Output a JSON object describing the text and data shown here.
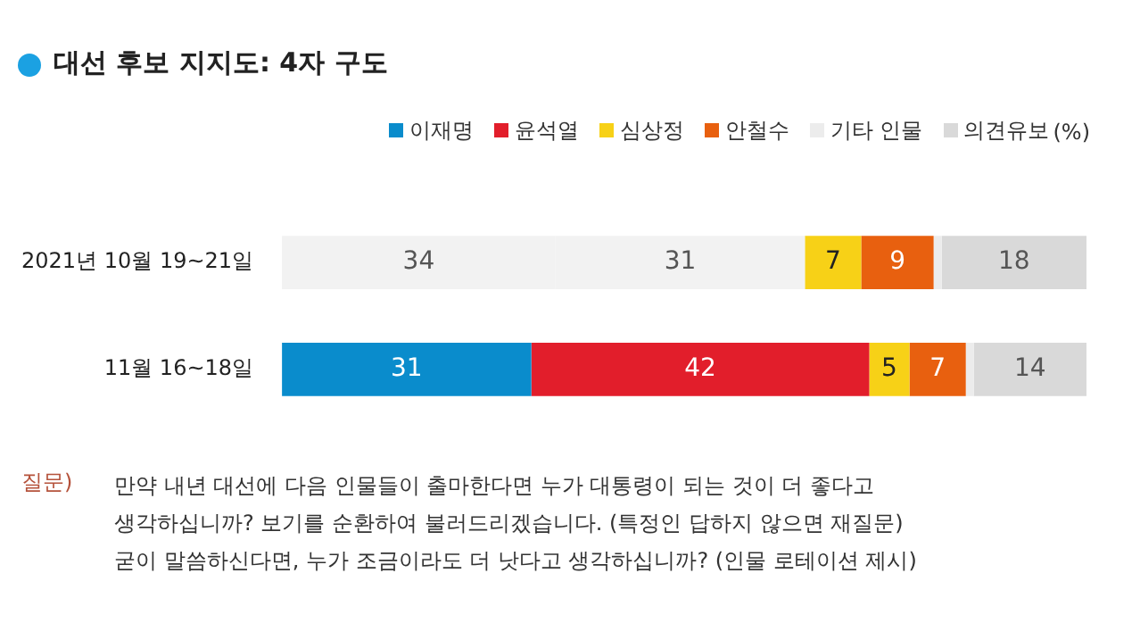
{
  "chart_data": {
    "type": "bar",
    "orientation": "horizontal",
    "stacked": true,
    "title": "대선 후보 지지도: 4자 구도",
    "categories": [
      "2021년 10월 19~21일",
      "11월 16~18일"
    ],
    "series": [
      {
        "name": "이재명",
        "color": "#0a8ccc",
        "colors": [
          "#f2f2f2",
          "#0a8ccc"
        ],
        "values": [
          34,
          31
        ],
        "value_labels": [
          "34",
          "31"
        ]
      },
      {
        "name": "윤석열",
        "color": "#e21e2b",
        "colors": [
          "#f2f2f2",
          "#e21e2b"
        ],
        "values": [
          31,
          42
        ],
        "value_labels": [
          "31",
          "42"
        ]
      },
      {
        "name": "심상정",
        "color": "#f7d117",
        "values": [
          7,
          5
        ],
        "value_labels": [
          "7",
          "5"
        ]
      },
      {
        "name": "안철수",
        "color": "#e8600f",
        "values": [
          9,
          7
        ],
        "value_labels": [
          "9",
          "7"
        ]
      },
      {
        "name": "기타 인물",
        "color": "#ececec",
        "values": [
          1,
          1
        ],
        "value_labels": [
          null,
          null
        ]
      },
      {
        "name": "의견유보",
        "color": "#d9d9d9",
        "values": [
          18,
          14
        ],
        "value_labels": [
          "18",
          "14"
        ]
      }
    ],
    "xlim": [
      0,
      100
    ],
    "tick_labels": "y",
    "grid": false,
    "legend": "top right",
    "annotations": [
      "(%)",
      "질문)",
      "만약 내년 대선에 다음 인물들이 출마한다면 누가 대통령이 되는 것이 더 좋다고\n생각하십니까? 보기를 순환하여 불러드리겠습니다. (특정인 답하지 않으면 재질문)\n굳이 말씀하신다면, 누가 조금이라도 더 낫다고 생각하십니까? (인물 로테이션 제시)"
    ]
  }
}
